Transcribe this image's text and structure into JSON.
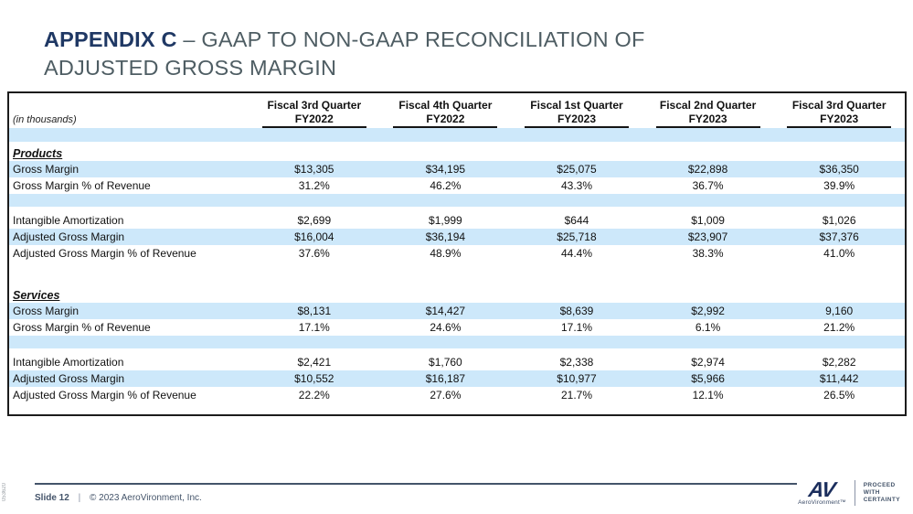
{
  "title": {
    "bold": "APPENDIX C",
    "rest_line1": " – GAAP TO NON-GAAP RECONCILIATION OF",
    "line2": "ADJUSTED GROSS MARGIN"
  },
  "colors": {
    "accent_navy": "#1f3864",
    "title_gray": "#4e5d63",
    "row_blue": "#cde8fa",
    "table_border": "#1c1c1c",
    "footer_slate": "#44546a",
    "logo_navy": "#1b2e5d"
  },
  "table": {
    "unit_note": "(in thousands)",
    "columns": [
      {
        "line1": "Fiscal 3rd Quarter",
        "line2": "FY2022"
      },
      {
        "line1": "Fiscal 4th Quarter",
        "line2": "FY2022"
      },
      {
        "line1": "Fiscal 1st Quarter",
        "line2": "FY2023"
      },
      {
        "line1": "Fiscal 2nd Quarter",
        "line2": "FY2023"
      },
      {
        "line1": "Fiscal 3rd Quarter",
        "line2": "FY2023"
      }
    ],
    "sections": [
      {
        "name": "Products",
        "rows": [
          {
            "label": "Gross Margin",
            "shade": true,
            "values": [
              "$13,305",
              "$34,195",
              "$25,075",
              "$22,898",
              "$36,350"
            ]
          },
          {
            "label": "Gross Margin % of Revenue",
            "shade": false,
            "values": [
              "31.2%",
              "46.2%",
              "43.3%",
              "36.7%",
              "39.9%"
            ]
          },
          {
            "spacer": "blue"
          },
          {
            "spacer": "white"
          },
          {
            "label": "Intangible Amortization",
            "shade": false,
            "values": [
              "$2,699",
              "$1,999",
              "$644",
              "$1,009",
              "$1,026"
            ]
          },
          {
            "label": "Adjusted Gross Margin",
            "shade": true,
            "values": [
              "$16,004",
              "$36,194",
              "$25,718",
              "$23,907",
              "$37,376"
            ]
          },
          {
            "label": "Adjusted Gross Margin % of Revenue",
            "shade": false,
            "values": [
              "37.6%",
              "48.9%",
              "44.4%",
              "38.3%",
              "41.0%"
            ]
          }
        ]
      },
      {
        "name": "Services",
        "rows": [
          {
            "label": "Gross Margin",
            "shade": true,
            "values": [
              "$8,131",
              "$14,427",
              "$8,639",
              "$2,992",
              "9,160"
            ]
          },
          {
            "label": "Gross Margin % of Revenue",
            "shade": false,
            "values": [
              "17.1%",
              "24.6%",
              "17.1%",
              "6.1%",
              "21.2%"
            ]
          },
          {
            "spacer": "blue"
          },
          {
            "spacer": "white"
          },
          {
            "label": "Intangible Amortization",
            "shade": false,
            "values": [
              "$2,421",
              "$1,760",
              "$2,338",
              "$2,974",
              "$2,282"
            ]
          },
          {
            "label": "Adjusted Gross Margin",
            "shade": true,
            "values": [
              "$10,552",
              "$16,187",
              "$10,977",
              "$5,966",
              "$11,442"
            ]
          },
          {
            "label": "Adjusted Gross Margin % of Revenue",
            "shade": false,
            "values": [
              "22.2%",
              "27.6%",
              "21.7%",
              "12.1%",
              "26.5%"
            ]
          }
        ]
      }
    ]
  },
  "footer": {
    "slide_label": "Slide 12",
    "divider": "|",
    "copyright": "© 2023 AeroVironment, Inc.",
    "doc_number": "053620",
    "logo_text": "AV",
    "logo_sub": "AeroVironment™",
    "tagline_lines": [
      "PROCEED",
      "WITH",
      "CERTAINTY"
    ]
  }
}
